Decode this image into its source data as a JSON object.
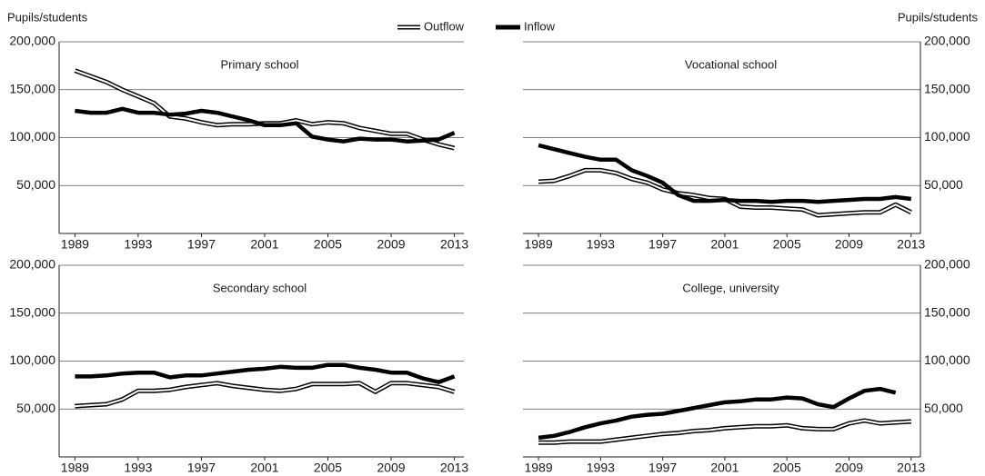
{
  "chart_data": [
    {
      "type": "line",
      "title": "Primary school",
      "y_label": "Pupils/students",
      "axis_side": "left",
      "x": [
        1989,
        1990,
        1991,
        1992,
        1993,
        1994,
        1995,
        1996,
        1997,
        1998,
        1999,
        2000,
        2001,
        2002,
        2003,
        2004,
        2005,
        2006,
        2007,
        2008,
        2009,
        2010,
        2011,
        2012,
        2013
      ],
      "xlim": [
        1988,
        2013.6
      ],
      "xticks": [
        1989,
        1993,
        1997,
        2001,
        2005,
        2009,
        2013
      ],
      "ylim": [
        0,
        200000
      ],
      "yticks": [
        {
          "value": 50000,
          "label": "50,000"
        },
        {
          "value": 100000,
          "label": "100,000"
        },
        {
          "value": 150000,
          "label": "150,000"
        },
        {
          "value": 200000,
          "label": "200,000"
        }
      ],
      "grid": true,
      "series": [
        {
          "name": "Outflow",
          "color": "#000000",
          "style": "hollow",
          "values": [
            170000,
            164000,
            158000,
            150000,
            143000,
            136000,
            122000,
            120000,
            116000,
            113000,
            114000,
            114000,
            115000,
            115000,
            118000,
            114000,
            116000,
            115000,
            110000,
            107000,
            104000,
            104000,
            98000,
            93000,
            89000
          ]
        },
        {
          "name": "Inflow",
          "color": "#000000",
          "style": "solid",
          "values": [
            128000,
            126000,
            126000,
            130000,
            126000,
            126000,
            124000,
            125000,
            128000,
            126000,
            122000,
            118000,
            113000,
            113000,
            115000,
            101000,
            98000,
            96000,
            99000,
            98000,
            98000,
            96000,
            97000,
            98000,
            105000
          ]
        }
      ]
    },
    {
      "type": "line",
      "title": "Vocational school",
      "y_label": "Pupils/students",
      "axis_side": "right",
      "x": [
        1989,
        1990,
        1991,
        1992,
        1993,
        1994,
        1995,
        1996,
        1997,
        1998,
        1999,
        2000,
        2001,
        2002,
        2003,
        2004,
        2005,
        2006,
        2007,
        2008,
        2009,
        2010,
        2011,
        2012,
        2013
      ],
      "xlim": [
        1988,
        2013.6
      ],
      "xticks": [
        1989,
        1993,
        1997,
        2001,
        2005,
        2009,
        2013
      ],
      "ylim": [
        0,
        200000
      ],
      "yticks": [
        {
          "value": 50000,
          "label": "50,000"
        },
        {
          "value": 100000,
          "label": "100,000"
        },
        {
          "value": 150000,
          "label": "150,000"
        },
        {
          "value": 200000,
          "label": "200,000"
        }
      ],
      "grid": true,
      "series": [
        {
          "color": "#000000",
          "style": "hollow",
          "values": [
            54000,
            55000,
            60000,
            66000,
            66000,
            63000,
            57000,
            53000,
            46000,
            42000,
            40000,
            37000,
            36000,
            28000,
            27000,
            27000,
            26000,
            25000,
            19000,
            20000,
            21000,
            22000,
            22000,
            30000,
            22000
          ]
        },
        {
          "color": "#000000",
          "style": "solid",
          "values": [
            92000,
            88000,
            84000,
            80000,
            77000,
            77000,
            66000,
            60000,
            53000,
            40000,
            34000,
            34000,
            35000,
            34000,
            34000,
            33000,
            34000,
            34000,
            33000,
            34000,
            35000,
            36000,
            36000,
            38000,
            36000
          ]
        }
      ]
    },
    {
      "type": "line",
      "title": "Secondary school",
      "axis_side": "left",
      "x": [
        1989,
        1990,
        1991,
        1992,
        1993,
        1994,
        1995,
        1996,
        1997,
        1998,
        1999,
        2000,
        2001,
        2002,
        2003,
        2004,
        2005,
        2006,
        2007,
        2008,
        2009,
        2010,
        2011,
        2012,
        2013
      ],
      "xlim": [
        1988,
        2013.6
      ],
      "xticks": [
        1989,
        1993,
        1997,
        2001,
        2005,
        2009,
        2013
      ],
      "ylim": [
        0,
        200000
      ],
      "yticks": [
        {
          "value": 50000,
          "label": "50,000"
        },
        {
          "value": 100000,
          "label": "100,000"
        },
        {
          "value": 150000,
          "label": "150,000"
        },
        {
          "value": 200000,
          "label": "200,000"
        }
      ],
      "grid": true,
      "series": [
        {
          "color": "#000000",
          "style": "hollow",
          "values": [
            53000,
            54000,
            55000,
            60000,
            69000,
            69000,
            70000,
            73000,
            75000,
            77000,
            74000,
            72000,
            70000,
            69000,
            71000,
            76000,
            76000,
            76000,
            77000,
            68000,
            77000,
            77000,
            75000,
            73000,
            68000
          ]
        },
        {
          "color": "#000000",
          "style": "solid",
          "values": [
            84000,
            84000,
            85000,
            87000,
            88000,
            88000,
            83000,
            85000,
            85000,
            87000,
            89000,
            91000,
            92000,
            94000,
            93000,
            93000,
            96000,
            96000,
            93000,
            91000,
            88000,
            88000,
            82000,
            78000,
            84000
          ]
        }
      ]
    },
    {
      "type": "line",
      "title": "College, university",
      "axis_side": "right",
      "x": [
        1989,
        1990,
        1991,
        1992,
        1993,
        1994,
        1995,
        1996,
        1997,
        1998,
        1999,
        2000,
        2001,
        2002,
        2003,
        2004,
        2005,
        2006,
        2007,
        2008,
        2009,
        2010,
        2011,
        2012,
        2013
      ],
      "xlim": [
        1988,
        2013.6
      ],
      "xticks": [
        1989,
        1993,
        1997,
        2001,
        2005,
        2009,
        2013
      ],
      "ylim": [
        0,
        200000
      ],
      "yticks": [
        {
          "value": 50000,
          "label": "50,000"
        },
        {
          "value": 100000,
          "label": "100,000"
        },
        {
          "value": 150000,
          "label": "150,000"
        },
        {
          "value": 200000,
          "label": "200,000"
        }
      ],
      "grid": true,
      "series": [
        {
          "color": "#000000",
          "style": "hollow",
          "values": [
            15000,
            15000,
            16000,
            16000,
            16000,
            18000,
            20000,
            22000,
            24000,
            25000,
            27000,
            28000,
            30000,
            31000,
            32000,
            32000,
            33000,
            30000,
            29000,
            29000,
            35000,
            38000,
            35000,
            36000,
            37000
          ]
        },
        {
          "color": "#000000",
          "style": "solid",
          "values": [
            20000,
            22000,
            26000,
            31000,
            35000,
            38000,
            42000,
            44000,
            45000,
            48000,
            51000,
            54000,
            57000,
            58000,
            60000,
            60000,
            62000,
            61000,
            55000,
            52000,
            61000,
            69000,
            71000,
            67000,
            null
          ]
        }
      ]
    }
  ]
}
